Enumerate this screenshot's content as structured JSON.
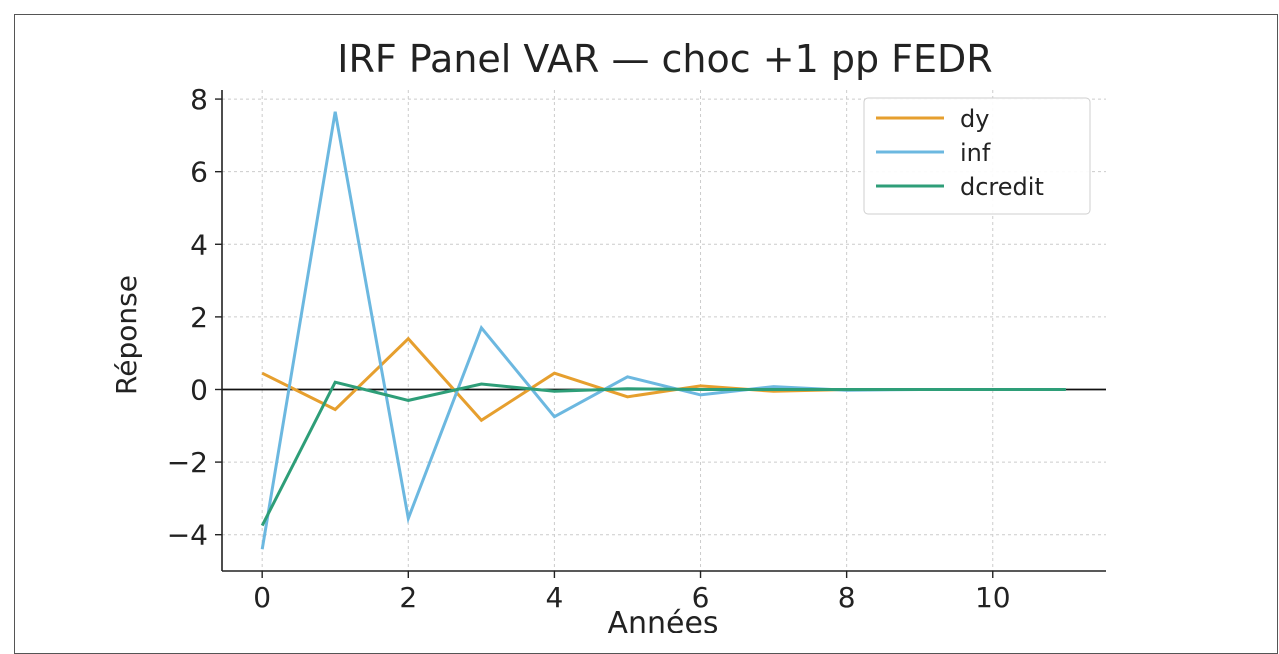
{
  "chart_data": {
    "type": "line",
    "title": "IRF Panel VAR — choc +1 pp FEDR",
    "xlabel": "Années",
    "ylabel": "Réponse",
    "xlim": [
      -0.55,
      11.55
    ],
    "ylim": [
      -5.0,
      8.25
    ],
    "x_ticks": [
      0,
      2,
      4,
      6,
      8,
      10
    ],
    "x_tick_labels": [
      "0",
      "2",
      "4",
      "6",
      "8",
      "10"
    ],
    "y_ticks": [
      -4,
      -2,
      0,
      2,
      4,
      6,
      8
    ],
    "y_tick_labels": [
      "−4",
      "−2",
      "0",
      "2",
      "4",
      "6",
      "8"
    ],
    "grid": true,
    "zero_line": true,
    "legend_position": "top-right",
    "x": [
      0,
      1,
      2,
      3,
      4,
      5,
      6,
      7,
      8,
      9,
      10,
      11
    ],
    "series": [
      {
        "name": "dy",
        "color": "#e69f2e",
        "values": [
          0.45,
          -0.55,
          1.4,
          -0.85,
          0.45,
          -0.2,
          0.1,
          -0.05,
          0.0,
          0.0,
          0.0,
          0.0
        ]
      },
      {
        "name": "inf",
        "color": "#6cb8e0",
        "values": [
          -4.4,
          7.65,
          -3.55,
          1.7,
          -0.75,
          0.35,
          -0.15,
          0.08,
          -0.02,
          0.0,
          0.0,
          0.0
        ]
      },
      {
        "name": "dcredit",
        "color": "#2e9e78",
        "values": [
          -3.75,
          0.2,
          -0.3,
          0.15,
          -0.05,
          0.02,
          0.0,
          0.0,
          0.0,
          0.0,
          0.0,
          0.0
        ]
      }
    ]
  }
}
